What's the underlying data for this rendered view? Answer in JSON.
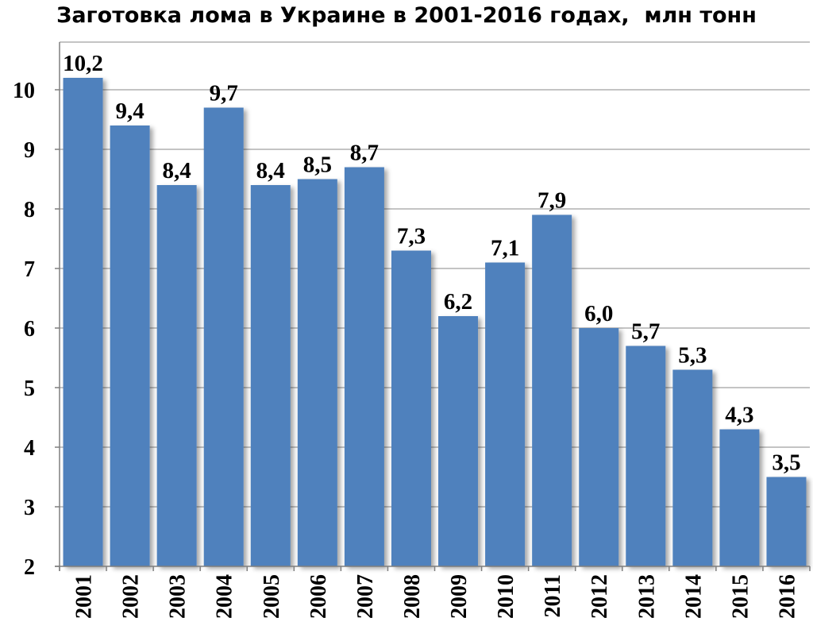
{
  "chart_data": {
    "type": "bar",
    "title": "Заготовка лома в Украине в 2001-2016 годах,  млн тонн",
    "categories": [
      "2001",
      "2002",
      "2003",
      "2004",
      "2005",
      "2006",
      "2007",
      "2008",
      "2009",
      "2010",
      "2011",
      "2012",
      "2013",
      "2014",
      "2015",
      "2016"
    ],
    "values": [
      10.2,
      9.4,
      8.4,
      9.7,
      8.4,
      8.5,
      8.7,
      7.3,
      6.2,
      7.1,
      7.9,
      6.0,
      5.7,
      5.3,
      4.3,
      3.5
    ],
    "data_labels": [
      "10,2",
      "9,4",
      "8,4",
      "9,7",
      "8,4",
      "8,5",
      "8,7",
      "7,3",
      "6,2",
      "7,1",
      "7,9",
      "6,0",
      "5,7",
      "5,3",
      "4,3",
      "3,5"
    ],
    "yticks": [
      "2",
      "3",
      "4",
      "5",
      "6",
      "7",
      "8",
      "9",
      "10"
    ],
    "xlabel": "",
    "ylabel": "",
    "ylim": [
      2,
      10.8
    ],
    "grid": true,
    "legend": "none",
    "bar_color": "#4f81bd",
    "grid_color": "#8a8a8a"
  }
}
